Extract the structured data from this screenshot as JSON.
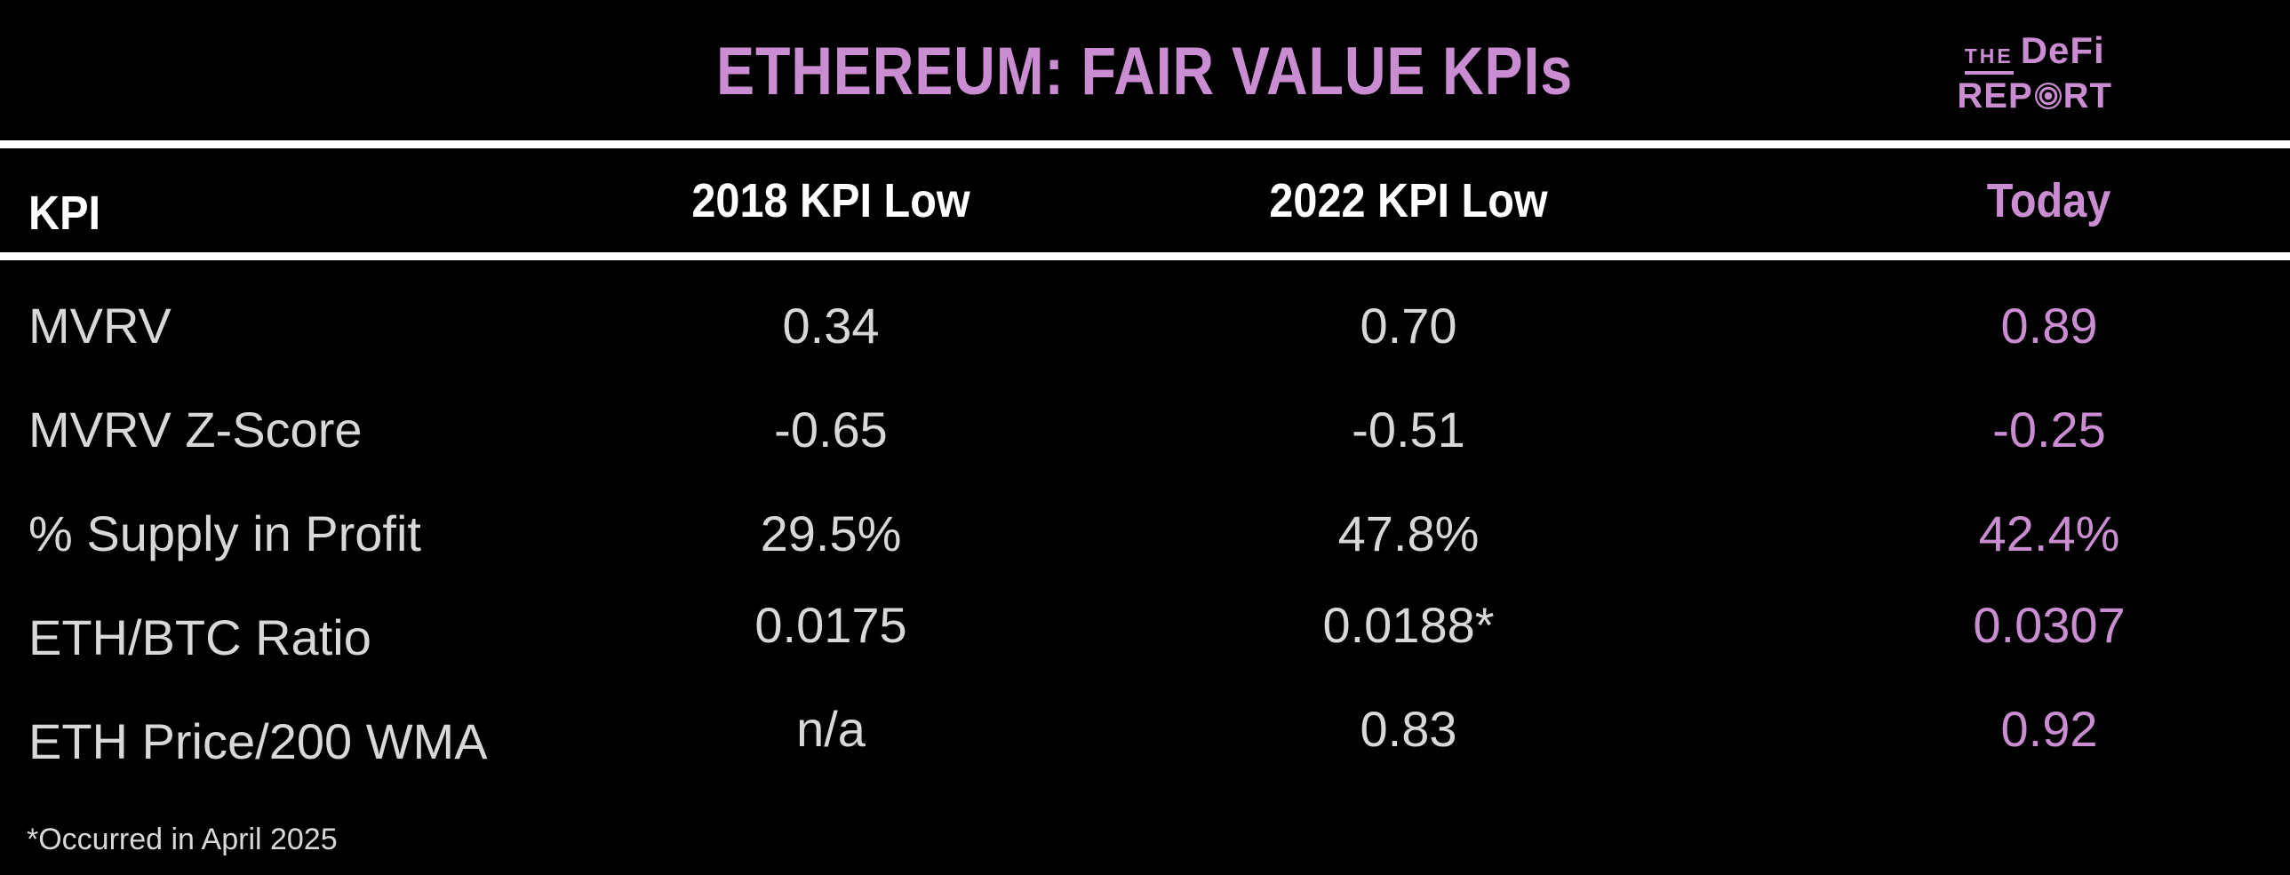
{
  "chart_data": {
    "type": "table",
    "title": "ETHEREUM: FAIR VALUE KPIs",
    "columns": [
      "KPI",
      "2018 KPI Low",
      "2022 KPI Low",
      "Today"
    ],
    "rows": [
      {
        "kpi": "MVRV",
        "low2018": "0.34",
        "low2022": "0.70",
        "today": "0.89"
      },
      {
        "kpi": "MVRV Z-Score",
        "low2018": "-0.65",
        "low2022": "-0.51",
        "today": "-0.25"
      },
      {
        "kpi": "% Supply in Profit",
        "low2018": "29.5%",
        "low2022": "47.8%",
        "today": "42.4%"
      },
      {
        "kpi": "ETH/BTC Ratio",
        "low2018": "0.0175",
        "low2022": "0.0188*",
        "today": "0.0307"
      },
      {
        "kpi": "ETH Price/200 WMA",
        "low2018": "n/a",
        "low2022": "0.83",
        "today": "0.92"
      }
    ],
    "footnote": "*Occurred in April 2025",
    "layout_hints": {
      "today_column_highlighted": true,
      "grid": "off"
    }
  },
  "logo": {
    "the": "THE",
    "defi": "DeFi",
    "report_prefix": "REP",
    "report_suffix": "RT",
    "o_icon": "bullseye-icon"
  },
  "colors": {
    "accent_pink": "#ca8dd2",
    "header_white": "#ffffff",
    "row_text": "#d8d8d8",
    "background": "#000000",
    "rule_white": "#ffffff"
  }
}
